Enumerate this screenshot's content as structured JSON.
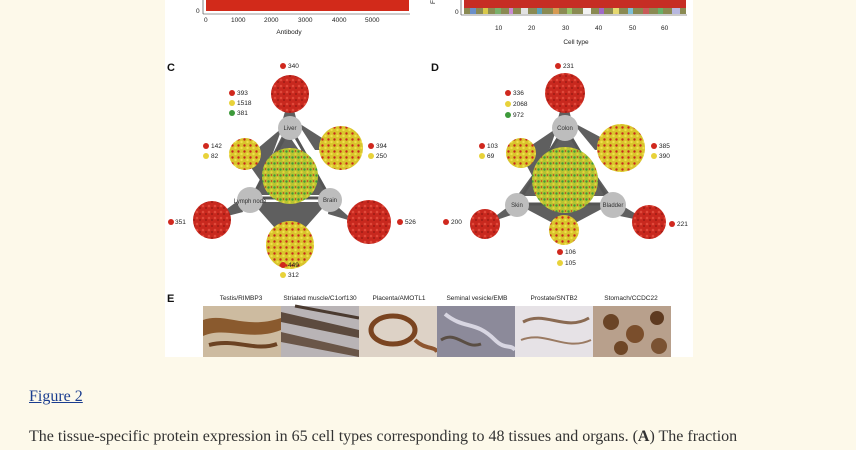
{
  "panelA": {
    "xlabel": "Antibody",
    "ticks": [
      "0",
      "1000",
      "2000",
      "3000",
      "4000",
      "5000"
    ],
    "ytick": "0"
  },
  "panelB": {
    "xlabel": "Cell type",
    "ticks": [
      "10",
      "20",
      "30",
      "40",
      "50",
      "60"
    ],
    "ytick": "0",
    "ylabel_fragment": "Fr"
  },
  "panelC": {
    "letter": "C",
    "nodes": [
      "Liver",
      "Brain",
      "Lymph node"
    ],
    "top_count": "340",
    "center_counts": [
      "393",
      "1518",
      "381"
    ],
    "left_counts": [
      "142",
      "82"
    ],
    "right_counts": [
      "394",
      "250"
    ],
    "outer_left_count": "351",
    "outer_right_count": "526",
    "bottom_counts": [
      "449",
      "312"
    ]
  },
  "panelD": {
    "letter": "D",
    "nodes": [
      "Colon",
      "Bladder",
      "Skin"
    ],
    "top_count": "231",
    "center_counts": [
      "336",
      "2068",
      "972"
    ],
    "left_counts": [
      "103",
      "69"
    ],
    "right_counts": [
      "385",
      "390"
    ],
    "outer_left_count": "200",
    "outer_right_count": "221",
    "bottom_counts": [
      "106",
      "105"
    ]
  },
  "panelE": {
    "letter": "E",
    "labels": [
      "Testis/RIMBP3",
      "Striated muscle/C1orf130",
      "Placenta/AMOTL1",
      "Seminal vesicle/EMB",
      "Prostate/SNTB2",
      "Stomach/CCDC22"
    ]
  },
  "figure_link": "Figure 2",
  "caption": {
    "text_before": "The tissue-specific protein expression in 65 cell types corresponding to 48 tissues and organs. (",
    "bold": "A",
    "text_after": ") The fraction"
  }
}
